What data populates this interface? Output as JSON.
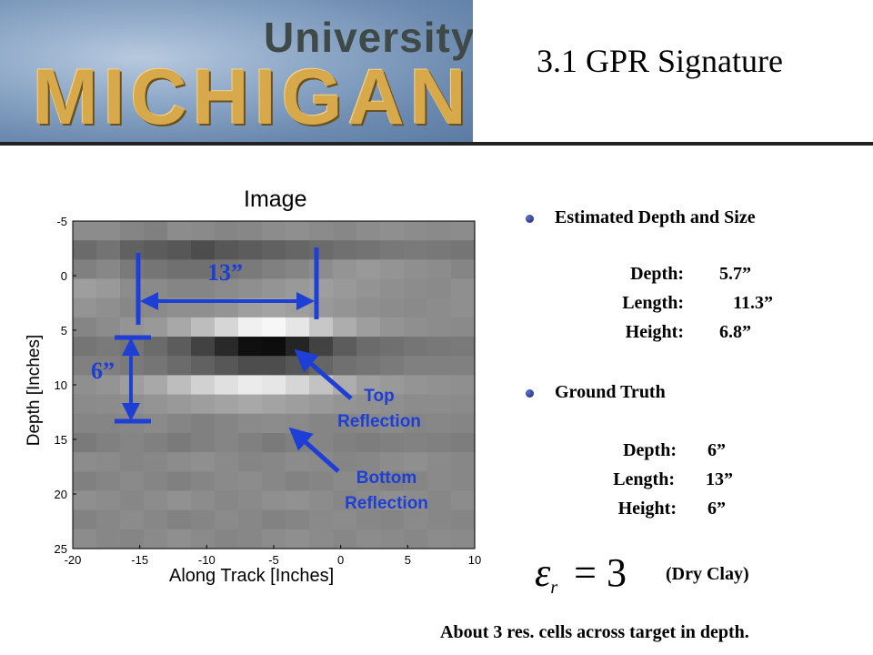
{
  "header": {
    "logo_line1": "University of",
    "logo_line2": "MICHIGAN",
    "slide_title": "3.1 GPR Signature"
  },
  "plot": {
    "title": "Image",
    "xlabel": "Along Track [Inches]",
    "ylabel": "Depth [Inches]",
    "xticks": [
      "-20",
      "-15",
      "-10",
      "-5",
      "0",
      "5",
      "10"
    ],
    "yticks": [
      "-5",
      "0",
      "5",
      "10",
      "15",
      "20",
      "25"
    ],
    "annotations": {
      "top_reflection": [
        "Top",
        "Reflection"
      ],
      "bottom_reflection": [
        "Bottom",
        "Reflection"
      ],
      "width_label": "13”",
      "height_label": "6”"
    }
  },
  "chart_data": {
    "type": "heatmap",
    "title": "Image",
    "xlabel": "Along Track [Inches]",
    "ylabel": "Depth [Inches]",
    "xlim": [
      -20,
      10
    ],
    "ylim": [
      25,
      -5
    ],
    "xticks": [
      -20,
      -15,
      -10,
      -5,
      0,
      5,
      10
    ],
    "yticks": [
      -5,
      0,
      5,
      10,
      15,
      20,
      25
    ],
    "colormap": "gray",
    "cols": 17,
    "rows": 17,
    "values": [
      [
        0.55,
        0.55,
        0.52,
        0.5,
        0.55,
        0.54,
        0.52,
        0.53,
        0.55,
        0.56,
        0.54,
        0.53,
        0.55,
        0.56,
        0.55,
        0.54,
        0.55
      ],
      [
        0.42,
        0.45,
        0.38,
        0.36,
        0.34,
        0.3,
        0.34,
        0.36,
        0.38,
        0.4,
        0.42,
        0.44,
        0.45,
        0.47,
        0.48,
        0.47,
        0.46
      ],
      [
        0.5,
        0.53,
        0.48,
        0.46,
        0.44,
        0.44,
        0.46,
        0.48,
        0.5,
        0.52,
        0.55,
        0.58,
        0.6,
        0.58,
        0.56,
        0.55,
        0.52
      ],
      [
        0.62,
        0.6,
        0.55,
        0.54,
        0.52,
        0.52,
        0.54,
        0.56,
        0.58,
        0.6,
        0.62,
        0.6,
        0.58,
        0.56,
        0.55,
        0.54,
        0.56
      ],
      [
        0.58,
        0.56,
        0.53,
        0.54,
        0.56,
        0.56,
        0.58,
        0.62,
        0.64,
        0.62,
        0.6,
        0.58,
        0.56,
        0.55,
        0.54,
        0.55,
        0.56
      ],
      [
        0.52,
        0.55,
        0.58,
        0.6,
        0.66,
        0.74,
        0.84,
        0.94,
        0.97,
        0.9,
        0.78,
        0.68,
        0.62,
        0.58,
        0.56,
        0.55,
        0.54
      ],
      [
        0.46,
        0.48,
        0.46,
        0.42,
        0.36,
        0.26,
        0.16,
        0.06,
        0.05,
        0.14,
        0.26,
        0.36,
        0.42,
        0.44,
        0.46,
        0.47,
        0.48
      ],
      [
        0.5,
        0.5,
        0.48,
        0.46,
        0.42,
        0.38,
        0.34,
        0.3,
        0.3,
        0.34,
        0.4,
        0.44,
        0.46,
        0.48,
        0.5,
        0.5,
        0.5
      ],
      [
        0.56,
        0.58,
        0.62,
        0.66,
        0.74,
        0.82,
        0.88,
        0.92,
        0.9,
        0.84,
        0.76,
        0.68,
        0.62,
        0.6,
        0.58,
        0.57,
        0.56
      ],
      [
        0.54,
        0.55,
        0.56,
        0.58,
        0.6,
        0.62,
        0.64,
        0.66,
        0.64,
        0.62,
        0.6,
        0.58,
        0.57,
        0.56,
        0.55,
        0.55,
        0.54
      ],
      [
        0.52,
        0.52,
        0.53,
        0.54,
        0.52,
        0.5,
        0.52,
        0.54,
        0.55,
        0.54,
        0.52,
        0.52,
        0.53,
        0.54,
        0.52,
        0.53,
        0.52
      ],
      [
        0.48,
        0.5,
        0.52,
        0.5,
        0.48,
        0.5,
        0.52,
        0.5,
        0.48,
        0.5,
        0.52,
        0.5,
        0.49,
        0.5,
        0.51,
        0.5,
        0.49
      ],
      [
        0.55,
        0.54,
        0.52,
        0.53,
        0.55,
        0.56,
        0.54,
        0.52,
        0.53,
        0.55,
        0.54,
        0.52,
        0.53,
        0.55,
        0.56,
        0.54,
        0.53
      ],
      [
        0.5,
        0.52,
        0.54,
        0.52,
        0.5,
        0.52,
        0.54,
        0.55,
        0.53,
        0.51,
        0.52,
        0.54,
        0.53,
        0.51,
        0.52,
        0.54,
        0.53
      ],
      [
        0.56,
        0.55,
        0.53,
        0.55,
        0.57,
        0.55,
        0.53,
        0.54,
        0.56,
        0.57,
        0.55,
        0.53,
        0.54,
        0.56,
        0.55,
        0.53,
        0.55
      ],
      [
        0.51,
        0.53,
        0.55,
        0.53,
        0.51,
        0.52,
        0.54,
        0.53,
        0.51,
        0.52,
        0.54,
        0.55,
        0.53,
        0.52,
        0.54,
        0.53,
        0.52
      ],
      [
        0.55,
        0.53,
        0.52,
        0.54,
        0.56,
        0.54,
        0.52,
        0.53,
        0.55,
        0.56,
        0.54,
        0.53,
        0.55,
        0.54,
        0.53,
        0.55,
        0.54
      ]
    ]
  },
  "estimated": {
    "heading": "Estimated Depth and Size",
    "rows": [
      {
        "label": "Depth:",
        "value": "5.7”"
      },
      {
        "label": "Length:",
        "value": "11.3”"
      },
      {
        "label": "Height:",
        "value": "6.8”"
      }
    ]
  },
  "ground_truth": {
    "heading": "Ground Truth",
    "rows": [
      {
        "label": "Depth:",
        "value": "6”"
      },
      {
        "label": "Length:",
        "value": "13”"
      },
      {
        "label": "Height:",
        "value": "6”"
      }
    ]
  },
  "permittivity": {
    "symbol": "ε",
    "subscript": "r",
    "equation": "= 3",
    "note": "(Dry Clay)"
  },
  "footer": "About 3 res. cells across target in depth.",
  "colors": {
    "annotation_blue": "#1e3fd6",
    "bullet": "#1a2a80"
  }
}
